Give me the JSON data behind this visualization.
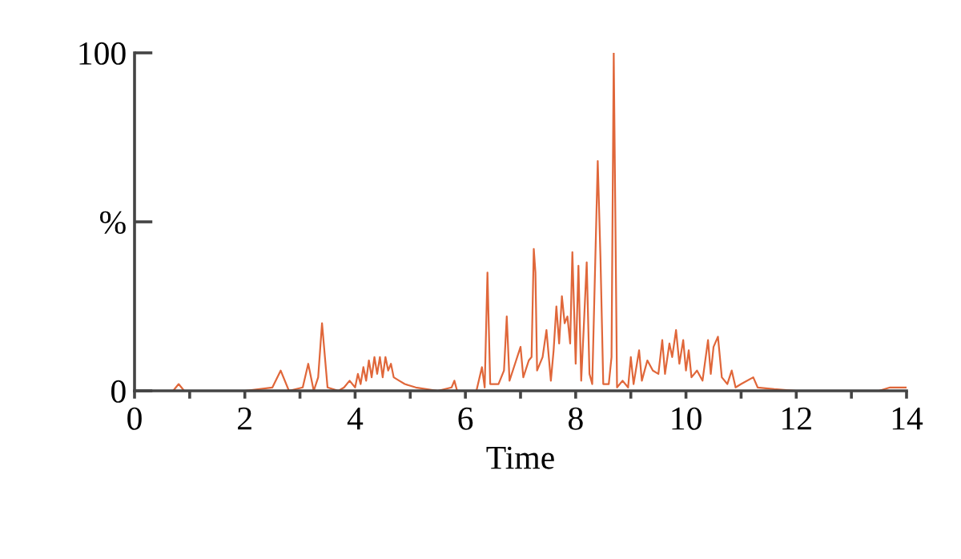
{
  "chart_data": {
    "type": "line",
    "xlabel": "Time",
    "x": [
      0,
      0.7,
      0.8,
      0.9,
      1.0,
      1.9,
      2.0,
      2.5,
      2.65,
      2.8,
      3.05,
      3.15,
      3.25,
      3.33,
      3.4,
      3.5,
      3.7,
      3.8,
      3.9,
      4.0,
      4.05,
      4.1,
      4.15,
      4.2,
      4.25,
      4.3,
      4.35,
      4.4,
      4.45,
      4.5,
      4.55,
      4.6,
      4.65,
      4.7,
      4.8,
      4.9,
      5.1,
      5.5,
      5.75,
      5.8,
      5.85,
      6.2,
      6.3,
      6.35,
      6.4,
      6.45,
      6.6,
      6.7,
      6.75,
      6.8,
      6.9,
      7.0,
      7.05,
      7.15,
      7.2,
      7.24,
      7.27,
      7.3,
      7.4,
      7.47,
      7.55,
      7.6,
      7.65,
      7.7,
      7.75,
      7.8,
      7.85,
      7.9,
      7.94,
      8.0,
      8.05,
      8.1,
      8.15,
      8.2,
      8.25,
      8.3,
      8.4,
      8.45,
      8.5,
      8.6,
      8.65,
      8.69,
      8.75,
      8.85,
      8.95,
      9.0,
      9.05,
      9.15,
      9.2,
      9.3,
      9.4,
      9.5,
      9.57,
      9.62,
      9.7,
      9.75,
      9.82,
      9.88,
      9.95,
      10.0,
      10.05,
      10.1,
      10.2,
      10.3,
      10.4,
      10.45,
      10.5,
      10.58,
      10.65,
      10.75,
      10.83,
      10.9,
      11.0,
      11.22,
      11.3,
      11.6,
      12.0,
      13.5,
      13.7,
      14.0
    ],
    "series": [
      {
        "color": "#e0673a",
        "values": [
          0,
          0,
          2,
          0,
          0,
          0,
          0,
          1,
          6,
          0,
          1,
          8,
          0,
          4,
          20,
          1,
          0,
          1,
          3,
          1,
          5,
          2,
          7,
          3,
          9,
          4,
          10,
          5,
          10,
          4,
          10,
          6,
          8,
          4,
          3,
          2,
          1,
          0,
          1,
          3,
          0,
          0,
          7,
          1,
          35,
          2,
          2,
          6,
          22,
          3,
          8,
          13,
          4,
          9,
          10,
          42,
          35,
          6,
          10,
          18,
          3,
          12,
          25,
          14,
          28,
          20,
          22,
          14,
          41,
          8,
          37,
          3,
          20,
          38,
          5,
          2,
          68,
          39,
          2,
          2,
          10,
          100,
          1,
          3,
          1,
          10,
          2,
          12,
          3,
          9,
          6,
          5,
          15,
          5,
          14,
          10,
          18,
          8,
          15,
          6,
          12,
          4,
          6,
          3,
          15,
          5,
          13,
          16,
          4,
          2,
          6,
          1,
          2,
          4,
          1,
          0.5,
          0,
          0,
          1,
          1
        ]
      }
    ],
    "xlim": [
      0,
      14
    ],
    "ylim": [
      0,
      100
    ],
    "xticks": [
      0,
      {
        "value": 1,
        "label": null
      },
      2,
      {
        "value": 3,
        "label": null
      },
      4,
      {
        "value": 5,
        "label": null
      },
      6,
      {
        "value": 7,
        "label": null
      },
      8,
      {
        "value": 9,
        "label": null
      },
      10,
      {
        "value": 11,
        "label": null
      },
      12,
      {
        "value": 13,
        "label": null
      },
      14
    ],
    "yticks": [
      0,
      {
        "value": 50,
        "label": "%"
      },
      100
    ],
    "grid": false,
    "legend": false
  }
}
